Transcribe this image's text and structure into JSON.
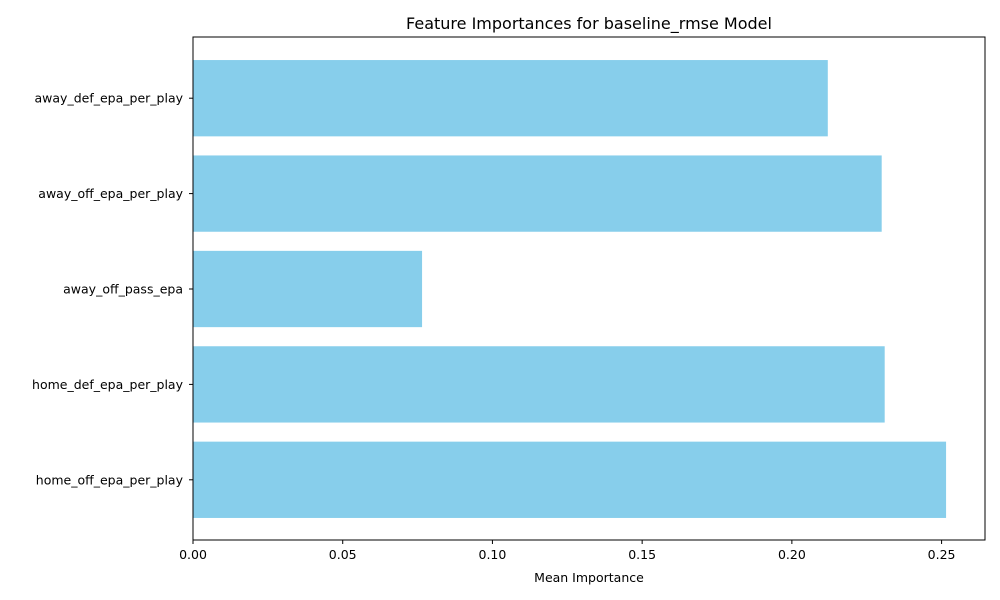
{
  "chart_data": {
    "type": "bar",
    "orientation": "horizontal",
    "title": "Feature Importances for baseline_rmse Model",
    "xlabel": "Mean Importance",
    "ylabel": "",
    "categories": [
      "away_def_epa_per_play",
      "away_off_epa_per_play",
      "away_off_pass_epa",
      "home_def_epa_per_play",
      "home_off_epa_per_play"
    ],
    "values": [
      0.212,
      0.23,
      0.0765,
      0.231,
      0.2515
    ],
    "xlim": [
      0,
      0.2645
    ],
    "xticks": [
      0.0,
      0.05,
      0.1,
      0.15,
      0.2,
      0.25
    ],
    "xtick_labels": [
      "0.00",
      "0.05",
      "0.10",
      "0.15",
      "0.20",
      "0.25"
    ],
    "bar_color": "#87ceeb",
    "grid": false
  }
}
